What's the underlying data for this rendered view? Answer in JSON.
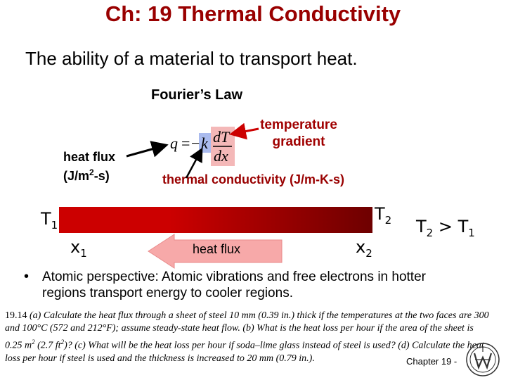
{
  "slide": {
    "title": "Ch: 19   Thermal Conductivity",
    "subtitle": "The ability of a material to transport heat.",
    "law_name": "Fourier’s Law",
    "temp_gradient_label": [
      "temperature",
      "gradient"
    ],
    "heat_flux_label": {
      "line1": "heat flux",
      "line2_pre": "(J/m",
      "line2_sup": "2",
      "line2_post": "-s)"
    },
    "equation": {
      "lhs": "q",
      "eq": "=",
      "minus": "−",
      "k": "k",
      "numerator": "dT",
      "denominator": "dx"
    },
    "thermal_conductivity_label": "thermal conductivity (J/m-K-s)",
    "bar_labels": {
      "T1": {
        "base": "T",
        "sub": "1"
      },
      "T2": {
        "base": "T",
        "sub": "2"
      },
      "x1": {
        "base": "x",
        "sub": "1"
      },
      "x2": {
        "base": "x",
        "sub": "2"
      }
    },
    "comparison": {
      "left": "T",
      "left_sub": "2",
      "op": " > ",
      "right": "T",
      "right_sub": "1"
    },
    "heat_flux_arrow_label": "heat flux",
    "bullet_symbol": "•",
    "atomic_text": "Atomic perspective:  Atomic vibrations and free electrons in hotter regions transport energy to cooler regions.",
    "problem": {
      "number": "19.14",
      "seg1": " (a) Calculate the heat flux through a sheet of steel 10 mm (0.39 in.) thick if the temperatures at the two faces are 300 and 100°C (572 and 212°F); assume steady-state heat flow. (b) What is the heat loss per hour if the area of the sheet is 0.25 m",
      "sup1": "2",
      "seg2": " (2.7 ft",
      "sup2": "2",
      "seg3": ")? (c) What will be the heat loss per hour if soda–lime glass instead of steel is used? (d) Calculate the heat loss per hour if steel is used and the thickness is increased to 20 mm (0.79 in.)."
    },
    "footer": "Chapter 19 -"
  },
  "colors": {
    "title": "#990000",
    "accent_red": "#cc0000",
    "dark_red": "#6e0000",
    "arrow_fill": "#f7a9a9",
    "gradient_box": "#f4b8b8",
    "k_box": "#aabbee"
  },
  "icons": {
    "logo": "university-seal-logo"
  }
}
